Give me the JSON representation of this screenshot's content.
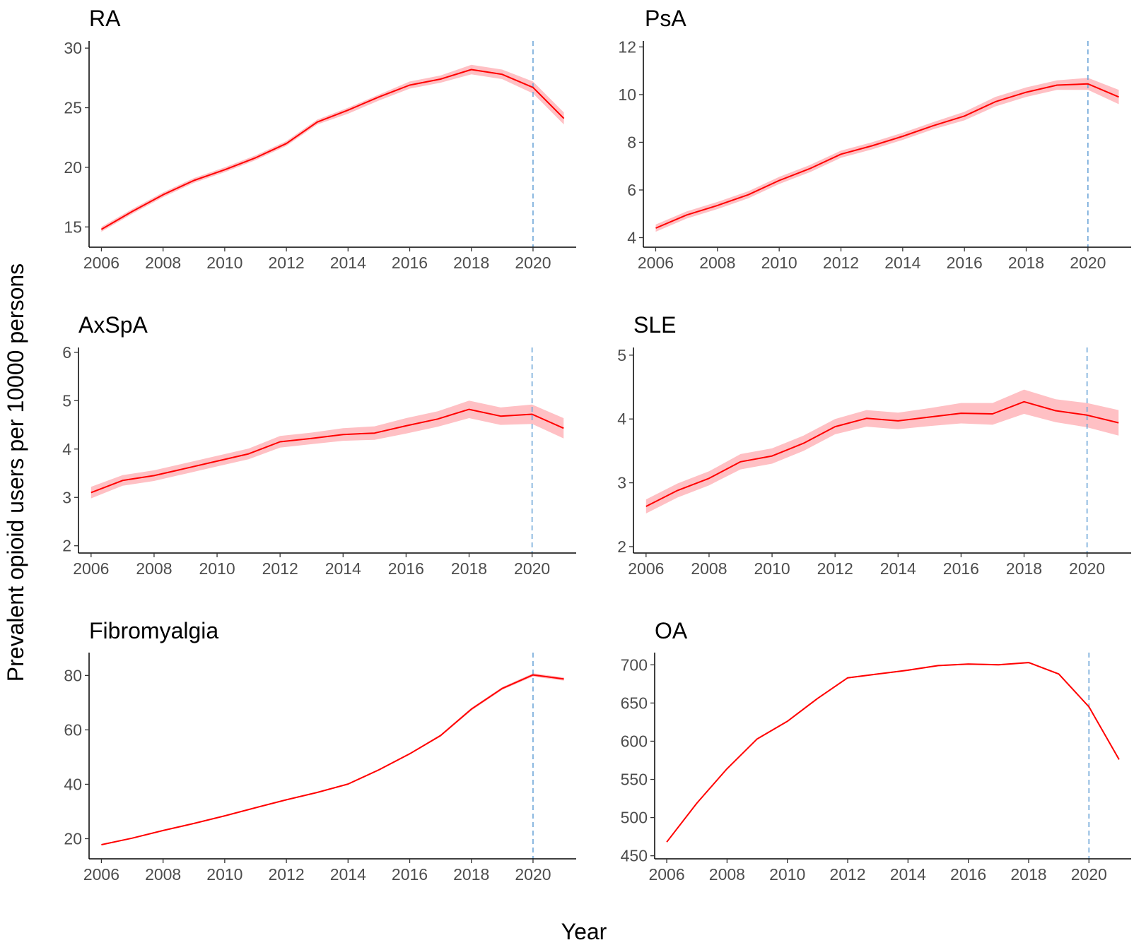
{
  "figure": {
    "ylabel": "Prevalent opioid users per 10000 persons",
    "xlabel": "Year"
  },
  "colors": {
    "line": "#ff0000",
    "band": "#ffc0c4",
    "reference_line": "#6ea6d8",
    "axis": "#000000",
    "tick_label": "#4d4d4d"
  },
  "chart_data": [
    {
      "type": "line",
      "title": "RA",
      "x": [
        2006,
        2007,
        2008,
        2009,
        2010,
        2011,
        2012,
        2013,
        2014,
        2015,
        2016,
        2017,
        2018,
        2019,
        2020,
        2021
      ],
      "values": [
        14.8,
        16.3,
        17.7,
        18.9,
        19.8,
        20.8,
        22.0,
        23.8,
        24.8,
        25.9,
        26.9,
        27.4,
        28.2,
        27.8,
        26.7,
        24.1
      ],
      "lower": [
        14.6,
        16.1,
        17.5,
        18.7,
        19.6,
        20.6,
        21.8,
        23.6,
        24.5,
        25.6,
        26.6,
        27.1,
        27.8,
        27.4,
        26.2,
        23.6
      ],
      "upper": [
        15.0,
        16.5,
        17.9,
        19.1,
        20.0,
        21.0,
        22.2,
        24.0,
        25.0,
        26.1,
        27.2,
        27.7,
        28.6,
        28.2,
        27.2,
        24.6
      ],
      "xticks": [
        2006,
        2008,
        2010,
        2012,
        2014,
        2016,
        2018,
        2020
      ],
      "yticks": [
        15,
        20,
        25,
        30
      ],
      "xlim": [
        2005.6,
        2021.4
      ],
      "ylim": [
        13.3,
        30.6
      ],
      "reference_x": 2020
    },
    {
      "type": "line",
      "title": "PsA",
      "x": [
        2006,
        2007,
        2008,
        2009,
        2010,
        2011,
        2012,
        2013,
        2014,
        2015,
        2016,
        2017,
        2018,
        2019,
        2020,
        2021
      ],
      "values": [
        4.4,
        4.95,
        5.35,
        5.8,
        6.4,
        6.9,
        7.5,
        7.85,
        8.25,
        8.7,
        9.1,
        9.7,
        10.1,
        10.4,
        10.45,
        9.9
      ],
      "lower": [
        4.25,
        4.8,
        5.2,
        5.65,
        6.25,
        6.75,
        7.35,
        7.7,
        8.1,
        8.55,
        8.92,
        9.5,
        9.9,
        10.2,
        10.2,
        9.6
      ],
      "upper": [
        4.55,
        5.1,
        5.5,
        5.95,
        6.55,
        7.05,
        7.65,
        8.0,
        8.4,
        8.85,
        9.28,
        9.9,
        10.3,
        10.6,
        10.7,
        10.2
      ],
      "xticks": [
        2006,
        2008,
        2010,
        2012,
        2014,
        2016,
        2018,
        2020
      ],
      "yticks": [
        4,
        6,
        8,
        10,
        12
      ],
      "xlim": [
        2005.6,
        2021.4
      ],
      "ylim": [
        3.6,
        12.25
      ],
      "reference_x": 2020
    },
    {
      "type": "line",
      "title": "AxSpA",
      "x": [
        2006,
        2007,
        2008,
        2009,
        2010,
        2011,
        2012,
        2013,
        2014,
        2015,
        2016,
        2017,
        2018,
        2019,
        2020,
        2021
      ],
      "values": [
        3.1,
        3.35,
        3.45,
        3.6,
        3.75,
        3.9,
        4.15,
        4.22,
        4.3,
        4.33,
        4.48,
        4.62,
        4.82,
        4.68,
        4.72,
        4.43
      ],
      "lower": [
        2.98,
        3.24,
        3.34,
        3.49,
        3.64,
        3.79,
        4.03,
        4.1,
        4.17,
        4.19,
        4.32,
        4.46,
        4.64,
        4.5,
        4.52,
        4.22
      ],
      "upper": [
        3.22,
        3.46,
        3.56,
        3.71,
        3.86,
        4.01,
        4.27,
        4.34,
        4.43,
        4.47,
        4.64,
        4.78,
        5.0,
        4.86,
        4.92,
        4.64
      ],
      "xticks": [
        2006,
        2008,
        2010,
        2012,
        2014,
        2016,
        2018,
        2020
      ],
      "yticks": [
        2,
        3,
        4,
        5,
        6
      ],
      "xlim": [
        2005.6,
        2021.4
      ],
      "ylim": [
        1.85,
        6.1
      ],
      "reference_x": 2020
    },
    {
      "type": "line",
      "title": "SLE",
      "x": [
        2006,
        2007,
        2008,
        2009,
        2010,
        2011,
        2012,
        2013,
        2014,
        2015,
        2016,
        2017,
        2018,
        2019,
        2020,
        2021
      ],
      "values": [
        2.63,
        2.88,
        3.07,
        3.33,
        3.42,
        3.62,
        3.88,
        4.01,
        3.97,
        4.03,
        4.09,
        4.08,
        4.27,
        4.13,
        4.06,
        3.94
      ],
      "lower": [
        2.52,
        2.77,
        2.96,
        3.21,
        3.3,
        3.5,
        3.76,
        3.88,
        3.84,
        3.89,
        3.93,
        3.91,
        4.08,
        3.95,
        3.87,
        3.74
      ],
      "upper": [
        2.74,
        2.99,
        3.18,
        3.45,
        3.54,
        3.74,
        4.0,
        4.14,
        4.1,
        4.17,
        4.25,
        4.25,
        4.46,
        4.31,
        4.25,
        4.14
      ],
      "xticks": [
        2006,
        2008,
        2010,
        2012,
        2014,
        2016,
        2018,
        2020
      ],
      "yticks": [
        2,
        3,
        4,
        5
      ],
      "xlim": [
        2005.6,
        2021.4
      ],
      "ylim": [
        1.9,
        5.12
      ],
      "reference_x": 2020
    },
    {
      "type": "line",
      "title": "Fibromyalgia",
      "x": [
        2006,
        2007,
        2008,
        2009,
        2010,
        2011,
        2012,
        2013,
        2014,
        2015,
        2016,
        2017,
        2018,
        2019,
        2020,
        2021
      ],
      "values": [
        17.8,
        20.2,
        23.0,
        25.6,
        28.4,
        31.4,
        34.3,
        37.0,
        40.1,
        45.3,
        51.2,
        57.9,
        67.6,
        75.2,
        80.2,
        78.7
      ],
      "lower": [
        17.6,
        20.0,
        22.8,
        25.4,
        28.2,
        31.2,
        34.1,
        36.8,
        39.9,
        45.0,
        50.9,
        57.5,
        67.1,
        74.7,
        79.6,
        78.1
      ],
      "upper": [
        18.0,
        20.4,
        23.2,
        25.8,
        28.6,
        31.6,
        34.5,
        37.2,
        40.3,
        45.6,
        51.5,
        58.3,
        68.1,
        75.7,
        80.8,
        79.3
      ],
      "xticks": [
        2006,
        2008,
        2010,
        2012,
        2014,
        2016,
        2018,
        2020
      ],
      "yticks": [
        20,
        40,
        60,
        80
      ],
      "xlim": [
        2005.6,
        2021.4
      ],
      "ylim": [
        12.6,
        88.4
      ],
      "reference_x": 2020
    },
    {
      "type": "line",
      "title": "OA",
      "x": [
        2006,
        2007,
        2008,
        2009,
        2010,
        2011,
        2012,
        2013,
        2014,
        2015,
        2016,
        2017,
        2018,
        2019,
        2020,
        2021
      ],
      "values": [
        468,
        519,
        564,
        603,
        626,
        656,
        683,
        688,
        693,
        699,
        701,
        700,
        703,
        688,
        645,
        576
      ],
      "lower": [
        467,
        518,
        563,
        602,
        625,
        655,
        682,
        687,
        692,
        698,
        700,
        699,
        702,
        687,
        644,
        575
      ],
      "upper": [
        469,
        520,
        565,
        604,
        627,
        657,
        684,
        689,
        694,
        700,
        702,
        701,
        704,
        689,
        646,
        577
      ],
      "xticks": [
        2006,
        2008,
        2010,
        2012,
        2014,
        2016,
        2018,
        2020
      ],
      "yticks": [
        450,
        500,
        550,
        600,
        650,
        700
      ],
      "xlim": [
        2005.6,
        2021.4
      ],
      "ylim": [
        446,
        716
      ],
      "reference_x": 2020
    }
  ]
}
